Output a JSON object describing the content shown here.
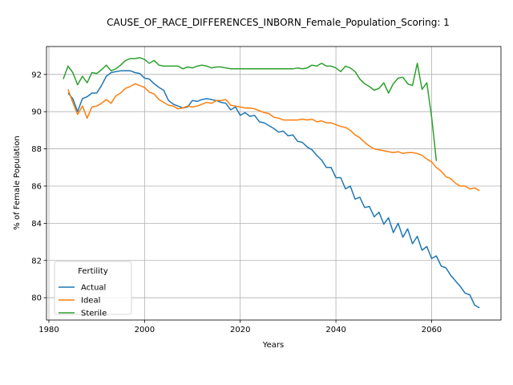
{
  "chart_data": {
    "type": "line",
    "title": "CAUSE_OF_RACE_DIFFERENCES_INBORN_Female_Population_Scoring: 1",
    "xlabel": "Years",
    "ylabel": "% of Female Population",
    "xlim": [
      1979.5,
      2074.5
    ],
    "ylim": [
      78.8,
      93.5
    ],
    "xticks": [
      1980,
      2000,
      2020,
      2040,
      2060
    ],
    "yticks": [
      80,
      82,
      84,
      86,
      88,
      90,
      92
    ],
    "grid": true,
    "legend": {
      "title": "Fertility",
      "position": "lower-left"
    },
    "series": [
      {
        "name": "Actual",
        "color": "#1f77b4",
        "x": [
          1984,
          1985,
          1986,
          1987,
          1988,
          1989,
          1990,
          1991,
          1992,
          1993,
          1994,
          1995,
          1996,
          1997,
          1998,
          1999,
          2000,
          2001,
          2002,
          2003,
          2004,
          2005,
          2006,
          2007,
          2008,
          2009,
          2010,
          2011,
          2012,
          2013,
          2014,
          2015,
          2016,
          2017,
          2018,
          2019,
          2020,
          2021,
          2022,
          2023,
          2024,
          2025,
          2026,
          2027,
          2028,
          2029,
          2030,
          2031,
          2032,
          2033,
          2034,
          2035,
          2036,
          2037,
          2038,
          2039,
          2040,
          2041,
          2042,
          2043,
          2044,
          2045,
          2046,
          2047,
          2048,
          2049,
          2050,
          2051,
          2052,
          2053,
          2054,
          2055,
          2056,
          2057,
          2058,
          2059,
          2060,
          2061,
          2062,
          2063,
          2064,
          2065,
          2066,
          2067,
          2068,
          2069,
          2070
        ],
        "values": [
          91.0,
          90.7,
          90.0,
          90.7,
          90.8,
          91.0,
          91.0,
          91.4,
          91.9,
          92.1,
          92.15,
          92.2,
          92.2,
          92.2,
          92.1,
          92.05,
          91.8,
          91.75,
          91.5,
          91.3,
          91.15,
          90.6,
          90.4,
          90.3,
          90.2,
          90.25,
          90.6,
          90.55,
          90.65,
          90.7,
          90.65,
          90.6,
          90.5,
          90.45,
          90.1,
          90.25,
          89.8,
          89.95,
          89.75,
          89.8,
          89.45,
          89.4,
          89.25,
          89.1,
          88.9,
          88.95,
          88.7,
          88.75,
          88.4,
          88.35,
          88.1,
          87.95,
          87.65,
          87.4,
          87.0,
          87.0,
          86.45,
          86.45,
          85.85,
          86.0,
          85.3,
          85.4,
          84.85,
          84.9,
          84.35,
          84.6,
          83.95,
          84.3,
          83.5,
          84.0,
          83.25,
          83.7,
          82.9,
          83.3,
          82.55,
          82.75,
          82.1,
          82.25,
          81.7,
          81.6,
          81.2,
          80.9,
          80.6,
          80.25,
          80.15,
          79.6,
          79.45
        ]
      },
      {
        "name": "Ideal",
        "color": "#ff7f0e",
        "x": [
          1984,
          1985,
          1986,
          1987,
          1988,
          1989,
          1990,
          1991,
          1992,
          1993,
          1994,
          1995,
          1996,
          1997,
          1998,
          1999,
          2000,
          2001,
          2002,
          2003,
          2004,
          2005,
          2006,
          2007,
          2008,
          2009,
          2010,
          2011,
          2012,
          2013,
          2014,
          2015,
          2016,
          2017,
          2018,
          2019,
          2020,
          2021,
          2022,
          2023,
          2024,
          2025,
          2026,
          2027,
          2028,
          2029,
          2030,
          2031,
          2032,
          2033,
          2034,
          2035,
          2036,
          2037,
          2038,
          2039,
          2040,
          2041,
          2042,
          2043,
          2044,
          2045,
          2046,
          2047,
          2048,
          2049,
          2050,
          2051,
          2052,
          2053,
          2054,
          2055,
          2056,
          2057,
          2058,
          2059,
          2060,
          2061,
          2062,
          2063,
          2064,
          2065,
          2066,
          2067,
          2068,
          2069,
          2070
        ],
        "values": [
          91.2,
          90.5,
          89.85,
          90.3,
          89.65,
          90.25,
          90.3,
          90.45,
          90.65,
          90.45,
          90.85,
          91.0,
          91.25,
          91.35,
          91.5,
          91.4,
          91.3,
          91.05,
          90.95,
          90.65,
          90.5,
          90.35,
          90.3,
          90.15,
          90.2,
          90.3,
          90.25,
          90.3,
          90.4,
          90.5,
          90.45,
          90.6,
          90.6,
          90.65,
          90.35,
          90.3,
          90.25,
          90.2,
          90.2,
          90.15,
          90.05,
          89.95,
          89.9,
          89.7,
          89.65,
          89.55,
          89.55,
          89.55,
          89.55,
          89.6,
          89.55,
          89.6,
          89.45,
          89.5,
          89.4,
          89.4,
          89.3,
          89.2,
          89.15,
          89.0,
          88.75,
          88.6,
          88.35,
          88.15,
          88.0,
          87.95,
          87.9,
          87.85,
          87.8,
          87.85,
          87.75,
          87.8,
          87.8,
          87.75,
          87.65,
          87.45,
          87.3,
          87.0,
          86.8,
          86.5,
          86.4,
          86.15,
          86.0,
          86.0,
          85.85,
          85.9,
          85.75
        ]
      },
      {
        "name": "Sterile",
        "color": "#2ca02c",
        "x": [
          1983,
          1984,
          1985,
          1986,
          1987,
          1988,
          1989,
          1990,
          1991,
          1992,
          1993,
          1994,
          1995,
          1996,
          1997,
          1998,
          1999,
          2000,
          2001,
          2002,
          2003,
          2004,
          2005,
          2006,
          2007,
          2008,
          2009,
          2010,
          2011,
          2012,
          2013,
          2014,
          2015,
          2016,
          2017,
          2018,
          2019,
          2020,
          2021,
          2022,
          2023,
          2024,
          2025,
          2026,
          2027,
          2028,
          2029,
          2030,
          2031,
          2032,
          2033,
          2034,
          2035,
          2036,
          2037,
          2038,
          2039,
          2040,
          2041,
          2042,
          2043,
          2044,
          2045,
          2046,
          2047,
          2048,
          2049,
          2050,
          2051,
          2052,
          2053,
          2054,
          2055,
          2056,
          2057,
          2058,
          2059,
          2060,
          2061
        ],
        "values": [
          91.75,
          92.45,
          92.1,
          91.45,
          91.9,
          91.55,
          92.1,
          92.05,
          92.25,
          92.5,
          92.2,
          92.3,
          92.5,
          92.75,
          92.85,
          92.85,
          92.9,
          92.8,
          92.6,
          92.75,
          92.5,
          92.45,
          92.45,
          92.45,
          92.45,
          92.3,
          92.4,
          92.35,
          92.45,
          92.5,
          92.45,
          92.35,
          92.4,
          92.4,
          92.35,
          92.3,
          92.3,
          92.3,
          92.3,
          92.3,
          92.3,
          92.3,
          92.3,
          92.3,
          92.3,
          92.3,
          92.3,
          92.3,
          92.3,
          92.35,
          92.3,
          92.35,
          92.5,
          92.45,
          92.6,
          92.45,
          92.45,
          92.35,
          92.15,
          92.45,
          92.35,
          92.15,
          91.75,
          91.5,
          91.35,
          91.15,
          91.25,
          91.55,
          91.0,
          91.5,
          91.8,
          91.85,
          91.5,
          91.4,
          92.6,
          91.2,
          91.55,
          89.7,
          87.35
        ]
      }
    ]
  }
}
